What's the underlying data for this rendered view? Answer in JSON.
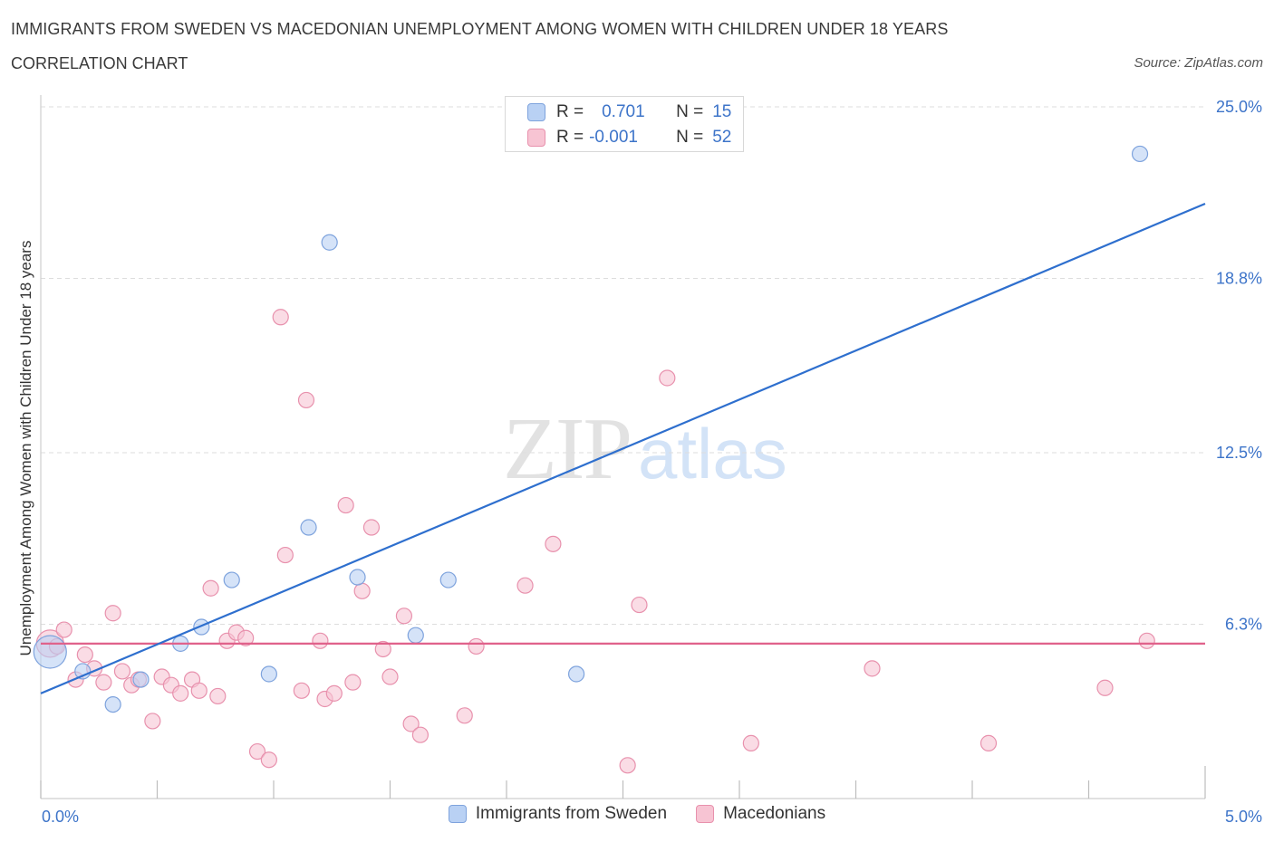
{
  "title": "IMMIGRANTS FROM SWEDEN VS MACEDONIAN UNEMPLOYMENT AMONG WOMEN WITH CHILDREN UNDER 18 YEARS",
  "subtitle": "CORRELATION CHART",
  "source": "Source: ZipAtlas.com",
  "watermark": {
    "zip": "ZIP",
    "atlas": "atlas"
  },
  "stats": {
    "r_label": "R =",
    "n_label": "N =",
    "sweden": {
      "r": "0.701",
      "n": "15"
    },
    "macedonian": {
      "r": "-0.001",
      "n": "52"
    }
  },
  "colors": {
    "sweden_fill": "#b9d1f4",
    "sweden_stroke": "#7ea3dd",
    "sweden_line": "#2e6fce",
    "mac_fill": "#f7c4d3",
    "mac_stroke": "#e891ad",
    "mac_line": "#e0628b",
    "axis_label": "#3d74c9",
    "grid": "#dddddd"
  },
  "chart_data": {
    "type": "scatter",
    "title": "IMMIGRANTS FROM SWEDEN VS MACEDONIAN UNEMPLOYMENT AMONG WOMEN WITH CHILDREN UNDER 18 YEARS",
    "xlabel": "",
    "ylabel": "Unemployment Among Women with Children Under 18 years",
    "xlim": [
      0,
      5
    ],
    "ylim": [
      0,
      25
    ],
    "x_tick_labels": [
      "0.0%",
      "5.0%"
    ],
    "y_ticks": [
      6.3,
      12.5,
      18.8,
      25.0
    ],
    "y_tick_labels": [
      "6.3%",
      "12.5%",
      "18.8%",
      "25.0%"
    ],
    "grid": true,
    "legend": "bottom",
    "series": [
      {
        "name": "Immigrants from Sweden",
        "points": [
          {
            "x": 0.04,
            "y": 5.3,
            "size": "large"
          },
          {
            "x": 0.18,
            "y": 4.6
          },
          {
            "x": 0.31,
            "y": 3.4
          },
          {
            "x": 0.43,
            "y": 4.3
          },
          {
            "x": 0.6,
            "y": 5.6
          },
          {
            "x": 0.69,
            "y": 6.2
          },
          {
            "x": 0.82,
            "y": 7.9
          },
          {
            "x": 0.98,
            "y": 4.5
          },
          {
            "x": 1.15,
            "y": 9.8
          },
          {
            "x": 1.24,
            "y": 20.1
          },
          {
            "x": 1.36,
            "y": 8.0
          },
          {
            "x": 1.61,
            "y": 5.9
          },
          {
            "x": 1.75,
            "y": 7.9
          },
          {
            "x": 2.3,
            "y": 4.5
          },
          {
            "x": 4.72,
            "y": 23.3
          }
        ],
        "trend": {
          "x0": 0.0,
          "y0": 3.8,
          "x1": 5.0,
          "y1": 21.5
        }
      },
      {
        "name": "Macedonians",
        "points": [
          {
            "x": 0.04,
            "y": 5.6,
            "size": "large"
          },
          {
            "x": 0.07,
            "y": 5.5
          },
          {
            "x": 0.1,
            "y": 6.1
          },
          {
            "x": 0.15,
            "y": 4.3
          },
          {
            "x": 0.19,
            "y": 5.2
          },
          {
            "x": 0.23,
            "y": 4.7
          },
          {
            "x": 0.27,
            "y": 4.2
          },
          {
            "x": 0.31,
            "y": 6.7
          },
          {
            "x": 0.35,
            "y": 4.6
          },
          {
            "x": 0.39,
            "y": 4.1
          },
          {
            "x": 0.42,
            "y": 4.3
          },
          {
            "x": 0.48,
            "y": 2.8
          },
          {
            "x": 0.52,
            "y": 4.4
          },
          {
            "x": 0.56,
            "y": 4.1
          },
          {
            "x": 0.6,
            "y": 3.8
          },
          {
            "x": 0.65,
            "y": 4.3
          },
          {
            "x": 0.68,
            "y": 3.9
          },
          {
            "x": 0.73,
            "y": 7.6
          },
          {
            "x": 0.76,
            "y": 3.7
          },
          {
            "x": 0.8,
            "y": 5.7
          },
          {
            "x": 0.84,
            "y": 6.0
          },
          {
            "x": 0.88,
            "y": 5.8
          },
          {
            "x": 0.93,
            "y": 1.7
          },
          {
            "x": 0.98,
            "y": 1.4
          },
          {
            "x": 1.03,
            "y": 17.4
          },
          {
            "x": 1.05,
            "y": 8.8
          },
          {
            "x": 1.12,
            "y": 3.9
          },
          {
            "x": 1.14,
            "y": 14.4
          },
          {
            "x": 1.2,
            "y": 5.7
          },
          {
            "x": 1.22,
            "y": 3.6
          },
          {
            "x": 1.26,
            "y": 3.8
          },
          {
            "x": 1.31,
            "y": 10.6
          },
          {
            "x": 1.34,
            "y": 4.2
          },
          {
            "x": 1.38,
            "y": 7.5
          },
          {
            "x": 1.42,
            "y": 9.8
          },
          {
            "x": 1.47,
            "y": 5.4
          },
          {
            "x": 1.5,
            "y": 4.4
          },
          {
            "x": 1.56,
            "y": 6.6
          },
          {
            "x": 1.59,
            "y": 2.7
          },
          {
            "x": 1.63,
            "y": 2.3
          },
          {
            "x": 1.82,
            "y": 3.0
          },
          {
            "x": 1.87,
            "y": 5.5
          },
          {
            "x": 2.08,
            "y": 7.7
          },
          {
            "x": 2.2,
            "y": 9.2
          },
          {
            "x": 2.52,
            "y": 1.2
          },
          {
            "x": 2.57,
            "y": 7.0
          },
          {
            "x": 2.69,
            "y": 15.2
          },
          {
            "x": 3.05,
            "y": 2.0
          },
          {
            "x": 3.57,
            "y": 4.7
          },
          {
            "x": 4.07,
            "y": 2.0
          },
          {
            "x": 4.57,
            "y": 4.0
          },
          {
            "x": 4.75,
            "y": 5.7
          }
        ],
        "trend": {
          "x0": 0.0,
          "y0": 5.6,
          "x1": 5.0,
          "y1": 5.6
        }
      }
    ]
  }
}
